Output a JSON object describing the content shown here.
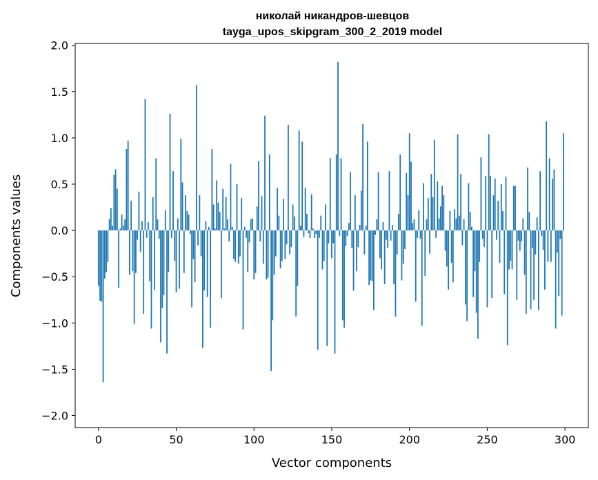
{
  "chart_data": {
    "type": "bar",
    "title": "николай никандров-шевцов",
    "subtitle": "tayga_upos_skipgram_300_2_2019 model",
    "xlabel": "Vector components",
    "ylabel": "Components values",
    "xlim": [
      -15,
      315
    ],
    "ylim": [
      -2.13,
      2.02
    ],
    "xticks": [
      0,
      50,
      100,
      150,
      200,
      250,
      300
    ],
    "yticks": [
      -2.0,
      -1.5,
      -1.0,
      -0.5,
      0.0,
      0.5,
      1.0,
      1.5,
      2.0
    ],
    "ytick_labels": [
      "−2.0",
      "−1.5",
      "−1.0",
      "−0.5",
      "0.0",
      "0.5",
      "1.0",
      "1.5",
      "2.0"
    ],
    "grid": false,
    "bar_color": "#1f77b4",
    "values": [
      -0.6,
      -0.76,
      -0.77,
      -1.64,
      -0.52,
      -0.45,
      -0.34,
      0.12,
      0.24,
      0.05,
      0.6,
      0.66,
      0.45,
      -0.62,
      0.02,
      0.17,
      0.05,
      0.12,
      0.88,
      0.97,
      -0.48,
      0.32,
      -0.44,
      -1.01,
      -0.46,
      -0.1,
      0.42,
      -0.23,
      0.1,
      -0.9,
      1.42,
      -0.08,
      0.09,
      -0.55,
      -1.06,
      0.36,
      -0.64,
      0.78,
      0.12,
      -0.09,
      -1.21,
      -0.84,
      -0.7,
      0.22,
      -1.33,
      -0.45,
      1.26,
      -0.08,
      0.64,
      -0.33,
      -0.67,
      0.13,
      -0.63,
      0.99,
      0.52,
      -0.46,
      0.38,
      0.21,
      0.17,
      -0.04,
      -0.83,
      -0.31,
      -0.56,
      1.57,
      -0.16,
      0.38,
      -0.28,
      -1.27,
      -0.65,
      0.1,
      -0.72,
      0.04,
      -1.05,
      0.88,
      0.28,
      0.02,
      0.54,
      0.3,
      0.2,
      -0.73,
      0.45,
      0.02,
      0.36,
      0.12,
      -0.12,
      0.72,
      0.04,
      -0.31,
      -0.34,
      0.5,
      -0.36,
      -0.28,
      0.35,
      -1.07,
      0.04,
      -0.08,
      -0.45,
      -0.13,
      0.12,
      0.13,
      -0.53,
      -0.46,
      0.26,
      0.75,
      -0.12,
      0.37,
      -0.36,
      1.24,
      -0.53,
      -0.51,
      0.82,
      -1.52,
      -0.97,
      -0.48,
      -0.28,
      0.46,
      0.16,
      -0.41,
      -0.33,
      0.34,
      -0.31,
      -0.15,
      1.14,
      -0.26,
      -0.18,
      0.28,
      0.15,
      -0.93,
      -0.6,
      1.08,
      0.05,
      0.96,
      -0.07,
      0.46,
      0.18,
      -0.03,
      -0.08,
      0.39,
      0.02,
      -0.08,
      -0.04,
      -1.29,
      -0.08,
      0.16,
      -0.42,
      -0.33,
      0.28,
      -1.25,
      -0.14,
      0.78,
      -0.3,
      -0.14,
      -1.33,
      0.82,
      1.82,
      -0.06,
      0.78,
      -0.97,
      -1.05,
      -0.17,
      -0.06,
      0.08,
      0.63,
      -0.19,
      -0.65,
      0.38,
      -0.44,
      -0.18,
      0.06,
      0.43,
      1.15,
      -0.26,
      0.05,
      0.96,
      -0.59,
      -0.54,
      -0.55,
      -0.86,
      -0.05,
      0.12,
      0.63,
      -0.3,
      -0.42,
      0.09,
      -0.58,
      -0.1,
      -0.19,
      0.64,
      -0.11,
      0.06,
      -0.58,
      -0.93,
      -0.26,
      0.18,
      0.82,
      -0.54,
      -0.36,
      -0.2,
      0.62,
      0.38,
      1.05,
      0.74,
      0.08,
      0.12,
      -0.77,
      -0.08,
      0.22,
      -0.09,
      -1.03,
      0.51,
      -0.49,
      0.12,
      0.35,
      -0.25,
      0.61,
      0.36,
      0.98,
      -0.08,
      0.53,
      0.13,
      0.26,
      0.48,
      0.38,
      -0.22,
      -0.39,
      -0.64,
      0.21,
      -0.35,
      -0.56,
      0.23,
      0.13,
      1.04,
      0.16,
      0.61,
      -0.16,
      0.12,
      -0.8,
      -0.98,
      0.51,
      0.2,
      0.04,
      -0.72,
      -0.44,
      -0.89,
      -1.17,
      -0.34,
      0.79,
      -0.09,
      -0.18,
      0.59,
      -0.83,
      1.04,
      0.59,
      -0.73,
      0.38,
      0.56,
      -0.1,
      0.32,
      -0.35,
      0.5,
      0.21,
      -0.69,
      0.58,
      -1.24,
      -0.42,
      -0.33,
      -0.42,
      0.48,
      0.48,
      -0.75,
      -0.11,
      -0.22,
      -0.12,
      0.13,
      -0.48,
      -0.9,
      0.68,
      0.2,
      -0.85,
      -0.19,
      -0.75,
      -0.26,
      0.14,
      -0.86,
      0.64,
      -0.06,
      -0.21,
      -0.64,
      1.18,
      -0.34,
      0.78,
      -0.34,
      0.56,
      0.66,
      -1.06,
      -0.24,
      -0.71,
      -0.09,
      -0.92,
      1.05
    ]
  }
}
